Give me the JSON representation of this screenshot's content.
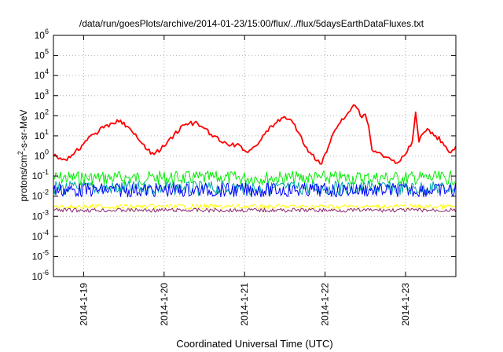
{
  "chart_data": {
    "type": "line",
    "title": "/data/run/goesPlots/archive/2014-01-23/15:00/flux/../flux/5daysEarthDataFluxes.txt",
    "xlabel": "Coordinated Universal Time (UTC)",
    "ylabel_parts": [
      "protons/cm",
      "2",
      "-s-sr-MeV"
    ],
    "y_scale": "log",
    "ylim_exponents": [
      -6,
      6
    ],
    "y_ticks": [
      {
        "base": "10",
        "exp": "6"
      },
      {
        "base": "10",
        "exp": "5"
      },
      {
        "base": "10",
        "exp": "4"
      },
      {
        "base": "10",
        "exp": "3"
      },
      {
        "base": "10",
        "exp": "2"
      },
      {
        "base": "10",
        "exp": "1"
      },
      {
        "base": "10",
        "exp": "0"
      },
      {
        "base": "10",
        "exp": "-1"
      },
      {
        "base": "10",
        "exp": "-2"
      },
      {
        "base": "10",
        "exp": "-3"
      },
      {
        "base": "10",
        "exp": "-4"
      },
      {
        "base": "10",
        "exp": "-5"
      },
      {
        "base": "10",
        "exp": "-6"
      }
    ],
    "x_range": [
      "2014-01-18 15:00",
      "2014-01-23 15:00"
    ],
    "x_ticks": [
      "2014-1-19",
      "2014-1-20",
      "2014-1-21",
      "2014-1-22",
      "2014-1-23"
    ],
    "x_tick_dates": [
      "2014-01-19 00:00",
      "2014-01-20 00:00",
      "2014-01-21 00:00",
      "2014-01-22 00:00",
      "2014-01-23 00:00"
    ],
    "grid": true,
    "series": [
      {
        "color": "#ff0000",
        "points": [
          [
            "2014-01-18 15:00",
            1.0
          ],
          [
            "2014-01-18 17:00",
            0.8
          ],
          [
            "2014-01-18 19:00",
            0.6
          ],
          [
            "2014-01-18 21:00",
            1.2
          ],
          [
            "2014-01-19 00:00",
            4
          ],
          [
            "2014-01-19 03:00",
            12
          ],
          [
            "2014-01-19 06:00",
            25
          ],
          [
            "2014-01-19 09:00",
            40
          ],
          [
            "2014-01-19 11:00",
            60
          ],
          [
            "2014-01-19 13:00",
            30
          ],
          [
            "2014-01-19 15:00",
            12
          ],
          [
            "2014-01-19 17:00",
            5
          ],
          [
            "2014-01-19 19:00",
            2
          ],
          [
            "2014-01-19 21:00",
            1.2
          ],
          [
            "2014-01-20 00:00",
            3
          ],
          [
            "2014-01-20 03:00",
            12
          ],
          [
            "2014-01-20 06:00",
            35
          ],
          [
            "2014-01-20 09:00",
            45
          ],
          [
            "2014-01-20 11:00",
            30
          ],
          [
            "2014-01-20 14:00",
            12
          ],
          [
            "2014-01-20 17:00",
            5
          ],
          [
            "2014-01-20 20:00",
            3.5
          ],
          [
            "2014-01-20 23:00",
            3
          ],
          [
            "2014-01-21 01:00",
            1.5
          ],
          [
            "2014-01-21 03:00",
            3
          ],
          [
            "2014-01-21 06:00",
            12
          ],
          [
            "2014-01-21 09:00",
            40
          ],
          [
            "2014-01-21 12:00",
            90
          ],
          [
            "2014-01-21 14:00",
            60
          ],
          [
            "2014-01-21 16:00",
            15
          ],
          [
            "2014-01-21 18:00",
            3
          ],
          [
            "2014-01-21 20:00",
            1.2
          ],
          [
            "2014-01-21 23:00",
            0.4
          ],
          [
            "2014-01-22 01:00",
            3
          ],
          [
            "2014-01-22 03:00",
            20
          ],
          [
            "2014-01-22 05:00",
            70
          ],
          [
            "2014-01-22 07:00",
            150
          ],
          [
            "2014-01-22 08:30",
            350
          ],
          [
            "2014-01-22 10:00",
            200
          ],
          [
            "2014-01-22 11:00",
            80
          ],
          [
            "2014-01-22 12:00",
            120
          ],
          [
            "2014-01-22 13:00",
            30
          ],
          [
            "2014-01-22 14:00",
            2
          ],
          [
            "2014-01-22 16:00",
            1.5
          ],
          [
            "2014-01-22 18:00",
            0.9
          ],
          [
            "2014-01-22 20:00",
            0.6
          ],
          [
            "2014-01-22 22:00",
            0.5
          ],
          [
            "2014-01-23 00:00",
            1.2
          ],
          [
            "2014-01-23 02:00",
            5
          ],
          [
            "2014-01-23 03:00",
            150
          ],
          [
            "2014-01-23 04:00",
            5
          ],
          [
            "2014-01-23 05:00",
            12
          ],
          [
            "2014-01-23 07:00",
            20
          ],
          [
            "2014-01-23 09:00",
            10
          ],
          [
            "2014-01-23 11:00",
            5
          ],
          [
            "2014-01-23 12:00",
            3
          ],
          [
            "2014-01-23 13:00",
            1.5
          ],
          [
            "2014-01-23 14:00",
            2
          ],
          [
            "2014-01-23 15:00",
            3
          ]
        ]
      },
      {
        "color": "#00ee00",
        "level": 0.08,
        "noise_decades": 0.35
      },
      {
        "color": "#00a8a8",
        "level": 0.025,
        "noise_decades": 0.35
      },
      {
        "color": "#0000ff",
        "level": 0.02,
        "noise_decades": 0.35
      },
      {
        "color": "#ffff00",
        "level": 0.003,
        "noise_decades": 0.12
      },
      {
        "color": "#8b2a6e",
        "level": 0.002,
        "noise_decades": 0.1
      }
    ]
  }
}
